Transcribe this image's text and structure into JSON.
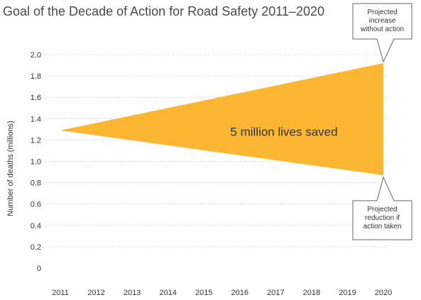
{
  "chart_data": {
    "type": "area",
    "title": "Goal of the Decade of Action for Road Safety 2011–2020",
    "ylabel": "Number of deaths (millions)",
    "xlabel": "",
    "x": [
      "2011",
      "2012",
      "2013",
      "2014",
      "2015",
      "2016",
      "2017",
      "2018",
      "2019",
      "2020"
    ],
    "y_ticks": [
      "0",
      "0.2",
      "0.4",
      "0.6",
      "0.8",
      "1.0",
      "1.2",
      "1.4",
      "1.6",
      "1.8",
      "2.0"
    ],
    "ylim": [
      0,
      2.0
    ],
    "grid": true,
    "band": {
      "start_x": "2011",
      "start_y": 1.29,
      "end_x": "2020",
      "upper_end": 1.92,
      "lower_end": 0.87,
      "color": "#fbb731",
      "label": "5 million lives saved"
    },
    "annotations": [
      {
        "lines": [
          "Projected",
          "increase",
          "without action"
        ],
        "target": "upper_end"
      },
      {
        "lines": [
          "Projected",
          "reduction if",
          "action taken"
        ],
        "target": "lower_end"
      }
    ]
  }
}
